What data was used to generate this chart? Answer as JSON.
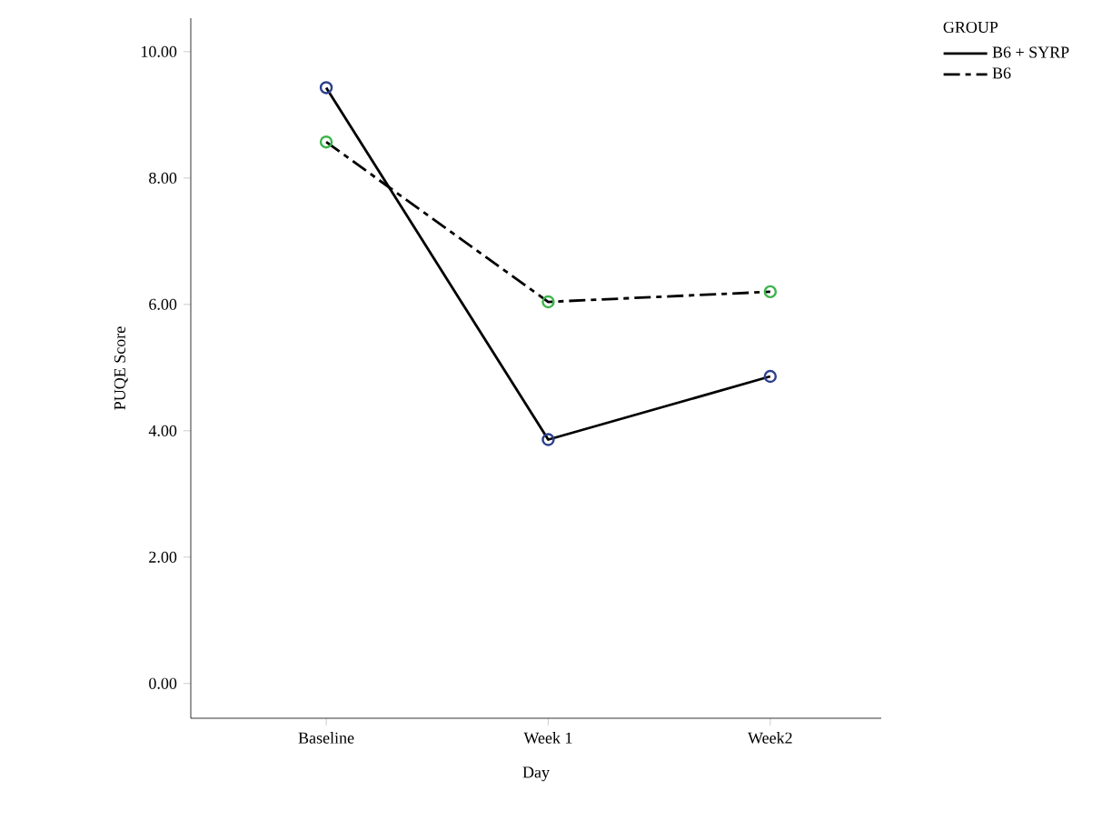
{
  "chart_data": {
    "type": "line",
    "xlabel": "Day",
    "ylabel": "PUQE Score",
    "legend_title": "GROUP",
    "legend": "top right",
    "marker": "circle",
    "categories": [
      "Baseline",
      "Week 1",
      "Week2"
    ],
    "series": [
      {
        "name": "B6 + SYRP",
        "color": "#000000",
        "colors": [
          "#2b3f8c",
          "#2b3f8c",
          "#2b3f8c"
        ],
        "line_style": "solid",
        "values": [
          9.43,
          3.86,
          4.86
        ]
      },
      {
        "name": "B6",
        "color": "#000000",
        "colors": [
          "#3cb44b",
          "#3cb44b",
          "#3cb44b"
        ],
        "line_style": "dashed",
        "values": [
          8.57,
          6.04,
          6.2
        ]
      }
    ],
    "ylim": [
      -0.55,
      10.53
    ],
    "yticks": [
      {
        "value": 0,
        "label": "0.00"
      },
      {
        "value": 2,
        "label": "2.00"
      },
      {
        "value": 4,
        "label": "4.00"
      },
      {
        "value": 6,
        "label": "6.00"
      },
      {
        "value": 8,
        "label": "8.00"
      },
      {
        "value": 10,
        "label": "10.00"
      }
    ]
  }
}
